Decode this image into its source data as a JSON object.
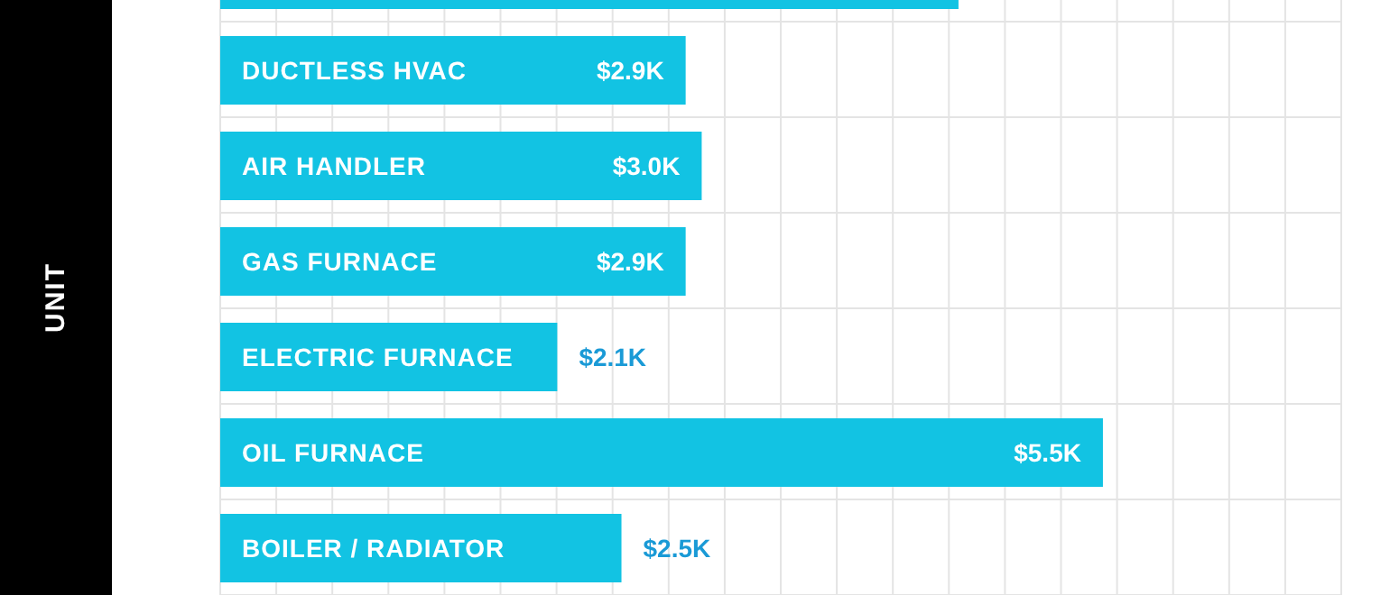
{
  "chart_data": {
    "type": "bar",
    "orientation": "horizontal",
    "annotations": [
      "UNIT"
    ],
    "categories": [
      null,
      "DUCTLESS HVAC",
      "AIR HANDLER",
      "GAS FURNACE",
      "ELECTRIC FURNACE",
      "OIL FURNACE",
      "BOILER / RADIATOR"
    ],
    "values": [
      4.6,
      2.9,
      3.0,
      2.9,
      2.1,
      5.5,
      2.5
    ],
    "value_labels": [
      null,
      "$2.9K",
      "$3.0K",
      "$2.9K",
      "$2.1K",
      "$5.5K",
      "$2.5K"
    ],
    "color": "#12c3e3",
    "grid": true
  }
}
